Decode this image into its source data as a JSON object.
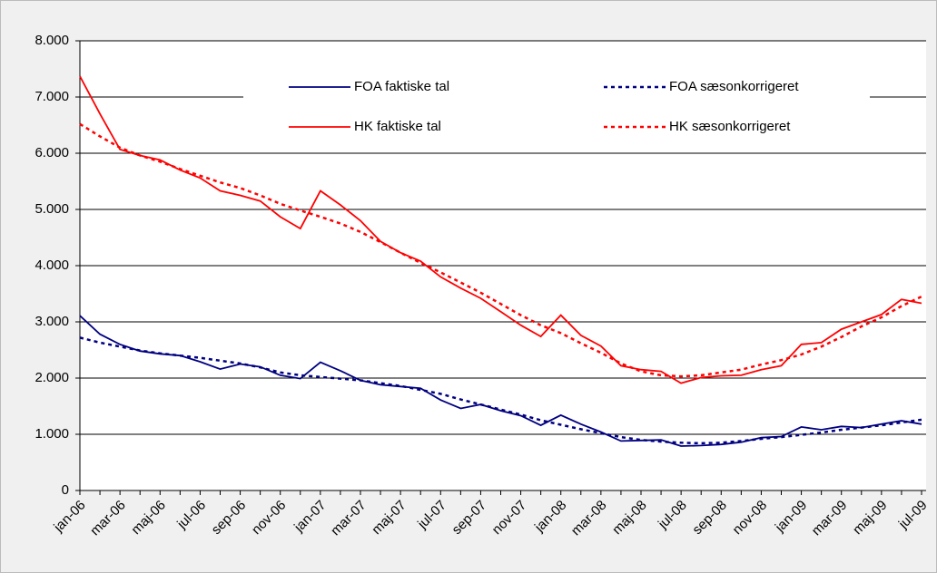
{
  "chart_data": {
    "type": "line",
    "categories": [
      "jan-06",
      null,
      "mar-06",
      null,
      "maj-06",
      null,
      "jul-06",
      null,
      "sep-06",
      null,
      "nov-06",
      null,
      "jan-07",
      null,
      "mar-07",
      null,
      "maj-07",
      null,
      "jul-07",
      null,
      "sep-07",
      null,
      "nov-07",
      null,
      "jan-08",
      null,
      "mar-08",
      null,
      "maj-08",
      null,
      "jul-08",
      null,
      "sep-08",
      null,
      "nov-08",
      null,
      "jan-09",
      null,
      "mar-09",
      null,
      "maj-09",
      null,
      "jul-09"
    ],
    "series": [
      {
        "name": "FOA faktiske tal",
        "color": "#000080",
        "dashed": false,
        "values": [
          3110,
          2780,
          2600,
          2480,
          2430,
          2400,
          2290,
          2160,
          2250,
          2200,
          2050,
          1990,
          2280,
          2130,
          1960,
          1880,
          1850,
          1820,
          1610,
          1460,
          1530,
          1420,
          1330,
          1160,
          1340,
          1180,
          1040,
          880,
          890,
          900,
          790,
          800,
          820,
          860,
          940,
          960,
          1130,
          1080,
          1140,
          1120,
          1180,
          1240,
          1180
        ]
      },
      {
        "name": "FOA sæsonkorrigeret",
        "color": "#000080",
        "dashed": true,
        "values": [
          2720,
          2630,
          2560,
          2490,
          2440,
          2400,
          2360,
          2310,
          2260,
          2190,
          2100,
          2050,
          2020,
          1990,
          1960,
          1910,
          1860,
          1790,
          1720,
          1620,
          1530,
          1440,
          1350,
          1250,
          1170,
          1090,
          1020,
          950,
          900,
          870,
          850,
          840,
          850,
          880,
          920,
          950,
          990,
          1030,
          1080,
          1120,
          1160,
          1210,
          1260
        ]
      },
      {
        "name": "HK faktiske tal",
        "color": "#ff0000",
        "dashed": false,
        "values": [
          7370,
          6700,
          6070,
          5960,
          5880,
          5700,
          5560,
          5330,
          5250,
          5150,
          4870,
          4660,
          5330,
          5080,
          4800,
          4430,
          4230,
          4080,
          3800,
          3600,
          3420,
          3180,
          2940,
          2740,
          3120,
          2760,
          2570,
          2220,
          2150,
          2120,
          1910,
          2010,
          2040,
          2050,
          2150,
          2220,
          2600,
          2630,
          2870,
          3000,
          3130,
          3400,
          3330
        ]
      },
      {
        "name": "HK sæsonkorrigeret",
        "color": "#ff0000",
        "dashed": true,
        "values": [
          6520,
          6300,
          6100,
          5960,
          5850,
          5720,
          5600,
          5480,
          5380,
          5250,
          5100,
          4980,
          4870,
          4750,
          4600,
          4420,
          4230,
          4050,
          3880,
          3700,
          3520,
          3320,
          3120,
          2940,
          2800,
          2620,
          2450,
          2260,
          2120,
          2050,
          2030,
          2050,
          2100,
          2150,
          2240,
          2320,
          2420,
          2560,
          2730,
          2920,
          3080,
          3280,
          3450
        ]
      }
    ],
    "ylim": [
      0,
      8000
    ],
    "yticks": [
      0,
      {
        "value": 1000,
        "label": "1.000"
      },
      {
        "value": 2000,
        "label": "2.000"
      },
      {
        "value": 3000,
        "label": "3.000"
      },
      {
        "value": 4000,
        "label": "4.000"
      },
      {
        "value": 5000,
        "label": "5.000"
      },
      {
        "value": 6000,
        "label": "6.000"
      },
      {
        "value": 7000,
        "label": "7.000"
      },
      {
        "value": 8000,
        "label": "8.000"
      }
    ],
    "grid": true,
    "legend": "top"
  }
}
